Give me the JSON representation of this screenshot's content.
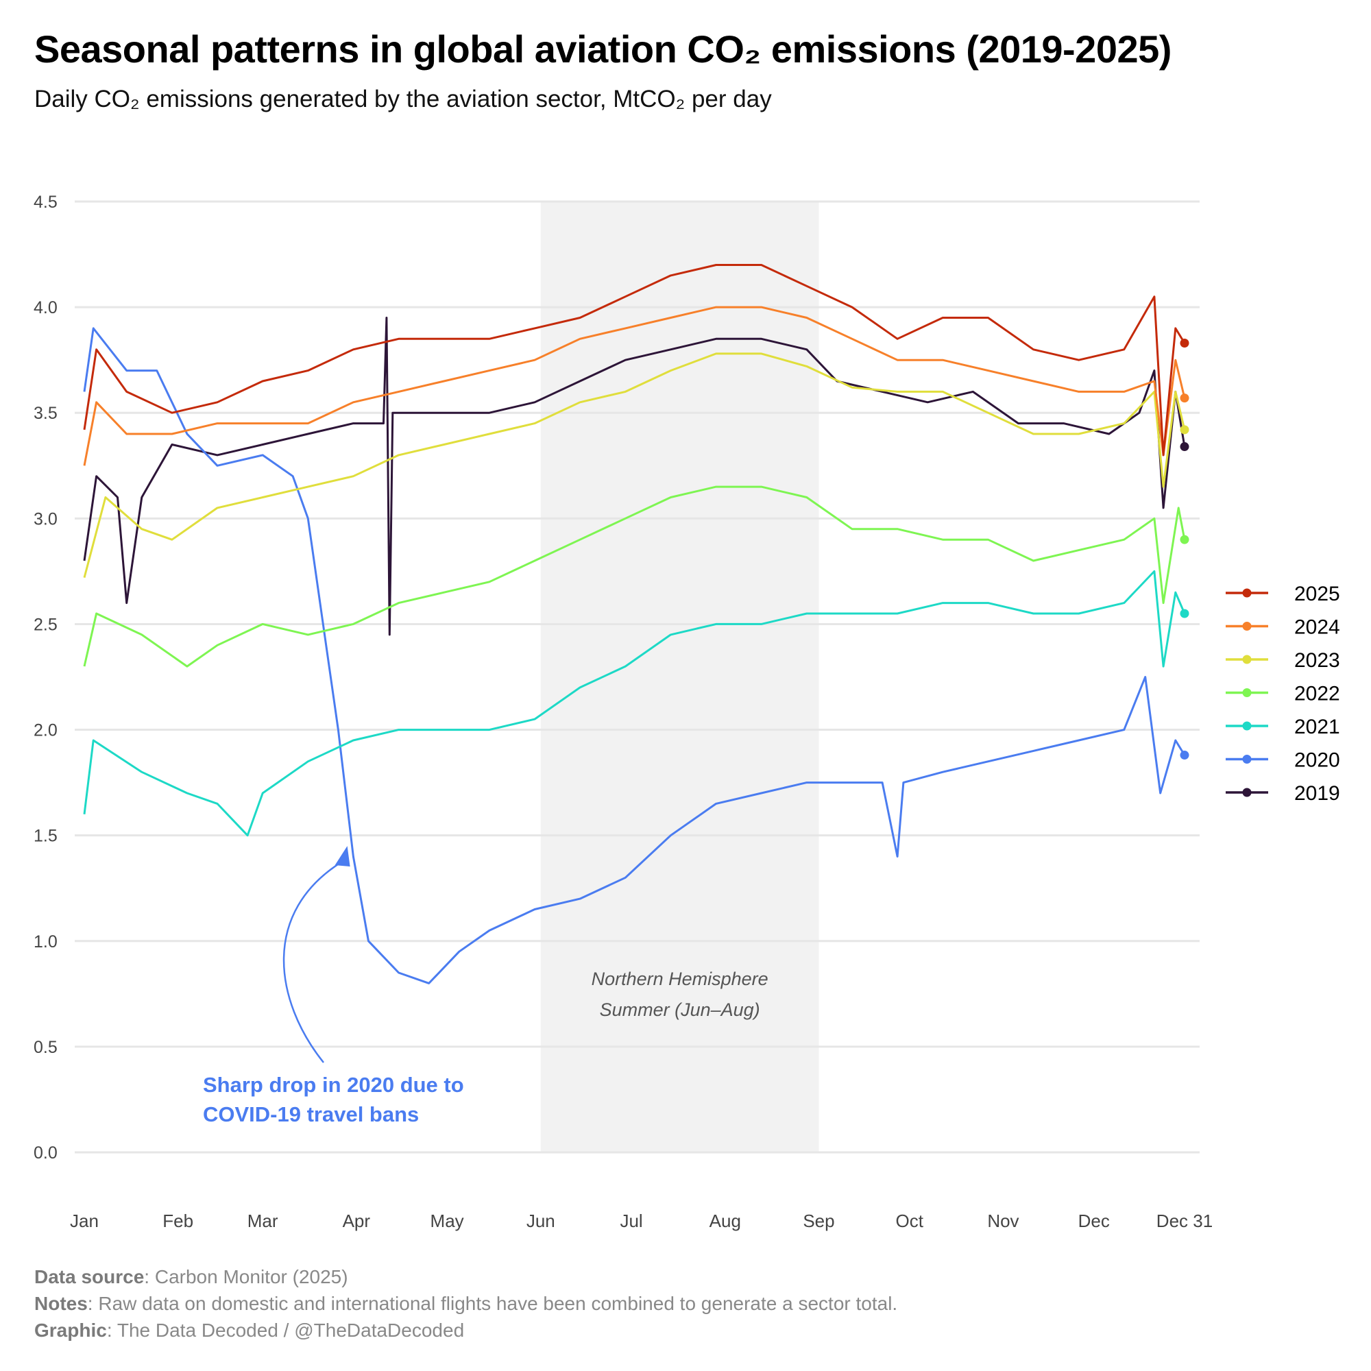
{
  "title": "Seasonal patterns in global aviation CO₂ emissions (2019-2025)",
  "subtitle": "Daily CO₂ emissions generated by the aviation sector, MtCO₂ per day",
  "chart_data": {
    "type": "line",
    "title": "Seasonal patterns in global aviation CO₂ emissions (2019-2025)",
    "ylabel": "",
    "xlabel": "",
    "x_unit": "day of year",
    "xlim": [
      1,
      365
    ],
    "ylim": [
      0,
      4.5
    ],
    "yticks": [
      0.0,
      0.5,
      1.0,
      1.5,
      2.0,
      2.5,
      3.0,
      3.5,
      4.0,
      4.5
    ],
    "xticks": [
      {
        "day": 1,
        "label": "Jan"
      },
      {
        "day": 32,
        "label": "Feb"
      },
      {
        "day": 60,
        "label": "Mar"
      },
      {
        "day": 91,
        "label": "Apr"
      },
      {
        "day": 121,
        "label": "May"
      },
      {
        "day": 152,
        "label": "Jun"
      },
      {
        "day": 182,
        "label": "Jul"
      },
      {
        "day": 213,
        "label": "Aug"
      },
      {
        "day": 244,
        "label": "Sep"
      },
      {
        "day": 274,
        "label": "Oct"
      },
      {
        "day": 305,
        "label": "Nov"
      },
      {
        "day": 335,
        "label": "Dec"
      },
      {
        "day": 365,
        "label": "Dec 31"
      }
    ],
    "grid": true,
    "legend_position": "right",
    "shaded_region": {
      "start_day": 152,
      "end_day": 244,
      "label_line1": "Northern Hemisphere",
      "label_line2": "Summer (Jun–Aug)",
      "color": "#f2f2f2"
    },
    "annotation": {
      "line1": "Sharp drop in 2020 due to",
      "line2": "COVID-19 travel bans",
      "color": "#4a7cf0",
      "points_to_day": 88,
      "points_to_value": 1.45
    },
    "series": [
      {
        "name": "2025",
        "color": "#c42a0a",
        "x": [
          1,
          5,
          15,
          30,
          45,
          60,
          75,
          90,
          105,
          120,
          135,
          150,
          165,
          180,
          195,
          210,
          225,
          240,
          255,
          270,
          285,
          300,
          315,
          330,
          345,
          355,
          358,
          362,
          365
        ],
        "y": [
          3.42,
          3.8,
          3.6,
          3.5,
          3.55,
          3.65,
          3.7,
          3.8,
          3.85,
          3.85,
          3.85,
          3.9,
          3.95,
          4.05,
          4.15,
          4.2,
          4.2,
          4.1,
          4.0,
          3.85,
          3.95,
          3.95,
          3.8,
          3.75,
          3.8,
          4.05,
          3.3,
          3.9,
          3.83
        ]
      },
      {
        "name": "2024",
        "color": "#f7802a",
        "x": [
          1,
          5,
          15,
          30,
          45,
          60,
          75,
          90,
          105,
          120,
          135,
          150,
          165,
          180,
          195,
          210,
          225,
          240,
          255,
          270,
          285,
          300,
          315,
          330,
          345,
          355,
          358,
          362,
          365
        ],
        "y": [
          3.25,
          3.55,
          3.4,
          3.4,
          3.45,
          3.45,
          3.45,
          3.55,
          3.6,
          3.65,
          3.7,
          3.75,
          3.85,
          3.9,
          3.95,
          4.0,
          4.0,
          3.95,
          3.85,
          3.75,
          3.75,
          3.7,
          3.65,
          3.6,
          3.6,
          3.65,
          3.3,
          3.75,
          3.57
        ]
      },
      {
        "name": "2023",
        "color": "#e0de3c",
        "x": [
          1,
          8,
          20,
          30,
          45,
          60,
          75,
          90,
          105,
          120,
          135,
          150,
          165,
          180,
          195,
          210,
          225,
          240,
          255,
          270,
          285,
          300,
          315,
          330,
          345,
          355,
          358,
          362,
          365
        ],
        "y": [
          2.72,
          3.1,
          2.95,
          2.9,
          3.05,
          3.1,
          3.15,
          3.2,
          3.3,
          3.35,
          3.4,
          3.45,
          3.55,
          3.6,
          3.7,
          3.78,
          3.78,
          3.72,
          3.62,
          3.6,
          3.6,
          3.5,
          3.4,
          3.4,
          3.45,
          3.6,
          3.15,
          3.6,
          3.42
        ]
      },
      {
        "name": "2022",
        "color": "#7ef552",
        "x": [
          1,
          5,
          20,
          35,
          45,
          60,
          75,
          90,
          105,
          120,
          135,
          150,
          165,
          180,
          195,
          210,
          225,
          240,
          255,
          270,
          285,
          300,
          315,
          330,
          345,
          355,
          358,
          363,
          365
        ],
        "y": [
          2.3,
          2.55,
          2.45,
          2.3,
          2.4,
          2.5,
          2.45,
          2.5,
          2.6,
          2.65,
          2.7,
          2.8,
          2.9,
          3.0,
          3.1,
          3.15,
          3.15,
          3.1,
          2.95,
          2.95,
          2.9,
          2.9,
          2.8,
          2.85,
          2.9,
          3.0,
          2.6,
          3.05,
          2.9
        ]
      },
      {
        "name": "2021",
        "color": "#1dd9c6",
        "x": [
          1,
          4,
          20,
          35,
          45,
          55,
          60,
          75,
          90,
          105,
          120,
          135,
          150,
          165,
          180,
          195,
          210,
          225,
          240,
          255,
          270,
          285,
          300,
          315,
          330,
          345,
          355,
          358,
          362,
          365
        ],
        "y": [
          1.6,
          1.95,
          1.8,
          1.7,
          1.65,
          1.5,
          1.7,
          1.85,
          1.95,
          2.0,
          2.0,
          2.0,
          2.05,
          2.2,
          2.3,
          2.45,
          2.5,
          2.5,
          2.55,
          2.55,
          2.55,
          2.6,
          2.6,
          2.55,
          2.55,
          2.6,
          2.75,
          2.3,
          2.65,
          2.55
        ]
      },
      {
        "name": "2020",
        "color": "#4a7cf0",
        "x": [
          1,
          4,
          15,
          25,
          35,
          45,
          60,
          70,
          75,
          80,
          85,
          90,
          95,
          105,
          115,
          125,
          135,
          150,
          165,
          180,
          195,
          210,
          225,
          240,
          255,
          265,
          270,
          272,
          285,
          300,
          315,
          330,
          345,
          352,
          357,
          362,
          365
        ],
        "y": [
          3.6,
          3.9,
          3.7,
          3.7,
          3.4,
          3.25,
          3.3,
          3.2,
          3.0,
          2.5,
          2.0,
          1.4,
          1.0,
          0.85,
          0.8,
          0.95,
          1.05,
          1.15,
          1.2,
          1.3,
          1.5,
          1.65,
          1.7,
          1.75,
          1.75,
          1.75,
          1.4,
          1.75,
          1.8,
          1.85,
          1.9,
          1.95,
          2.0,
          2.25,
          1.7,
          1.95,
          1.88
        ]
      },
      {
        "name": "2019",
        "color": "#2d1538",
        "x": [
          1,
          5,
          12,
          15,
          20,
          30,
          45,
          60,
          75,
          90,
          100,
          101,
          102,
          103,
          115,
          135,
          150,
          165,
          180,
          195,
          210,
          225,
          240,
          250,
          265,
          280,
          295,
          310,
          325,
          340,
          350,
          355,
          358,
          362,
          365
        ],
        "y": [
          2.8,
          3.2,
          3.1,
          2.6,
          3.1,
          3.35,
          3.3,
          3.35,
          3.4,
          3.45,
          3.45,
          3.95,
          2.45,
          3.5,
          3.5,
          3.5,
          3.55,
          3.65,
          3.75,
          3.8,
          3.85,
          3.85,
          3.8,
          3.65,
          3.6,
          3.55,
          3.6,
          3.45,
          3.45,
          3.4,
          3.5,
          3.7,
          3.05,
          3.6,
          3.34
        ]
      }
    ]
  },
  "footer": {
    "source_label": "Data source",
    "source_text": ": Carbon Monitor (2025)",
    "notes_label": "Notes",
    "notes_text": ": Raw data on domestic and international flights have been combined to generate a sector total.",
    "graphic_label": "Graphic",
    "graphic_text": ": The Data Decoded / @TheDataDecoded"
  }
}
